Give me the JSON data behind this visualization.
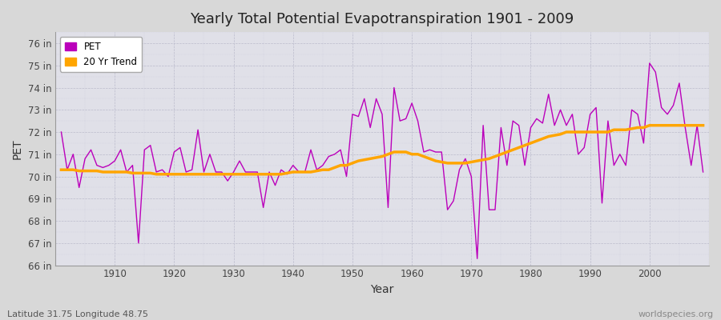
{
  "title": "Yearly Total Potential Evapotranspiration 1901 - 2009",
  "xlabel": "Year",
  "ylabel": "PET",
  "bottom_left_label": "Latitude 31.75 Longitude 48.75",
  "bottom_right_label": "worldspecies.org",
  "background_color": "#d8d8d8",
  "plot_bg_color": "#e0e0e8",
  "pet_color": "#bb00bb",
  "trend_color": "#ffa500",
  "ylim": [
    66,
    76.5
  ],
  "yticks": [
    66,
    67,
    68,
    69,
    70,
    71,
    72,
    73,
    74,
    75,
    76
  ],
  "ytick_labels": [
    "66 in",
    "67 in",
    "68 in",
    "69 in",
    "70 in",
    "71 in",
    "72 in",
    "73 in",
    "74 in",
    "75 in",
    "76 in"
  ],
  "xlim": [
    1900,
    2010
  ],
  "xticks": [
    1910,
    1920,
    1930,
    1940,
    1950,
    1960,
    1970,
    1980,
    1990,
    2000
  ],
  "pet_years": [
    1901,
    1902,
    1903,
    1904,
    1905,
    1906,
    1907,
    1908,
    1909,
    1910,
    1911,
    1912,
    1913,
    1914,
    1915,
    1916,
    1917,
    1918,
    1919,
    1920,
    1921,
    1922,
    1923,
    1924,
    1925,
    1926,
    1927,
    1928,
    1929,
    1930,
    1931,
    1932,
    1933,
    1934,
    1935,
    1936,
    1937,
    1938,
    1939,
    1940,
    1941,
    1942,
    1943,
    1944,
    1945,
    1946,
    1947,
    1948,
    1949,
    1950,
    1951,
    1952,
    1953,
    1954,
    1955,
    1956,
    1957,
    1958,
    1959,
    1960,
    1961,
    1962,
    1963,
    1964,
    1965,
    1966,
    1967,
    1968,
    1969,
    1970,
    1971,
    1972,
    1973,
    1974,
    1975,
    1976,
    1977,
    1978,
    1979,
    1980,
    1981,
    1982,
    1983,
    1984,
    1985,
    1986,
    1987,
    1988,
    1989,
    1990,
    1991,
    1992,
    1993,
    1994,
    1995,
    1996,
    1997,
    1998,
    1999,
    2000,
    2001,
    2002,
    2003,
    2004,
    2005,
    2006,
    2007,
    2008,
    2009
  ],
  "pet_values": [
    72.0,
    70.3,
    71.0,
    69.5,
    70.8,
    71.2,
    70.5,
    70.4,
    70.5,
    70.7,
    71.2,
    70.2,
    70.5,
    67.0,
    71.2,
    71.4,
    70.2,
    70.3,
    70.0,
    71.1,
    71.3,
    70.2,
    70.3,
    72.1,
    70.2,
    71.0,
    70.2,
    70.2,
    69.8,
    70.2,
    70.7,
    70.2,
    70.2,
    70.2,
    68.6,
    70.2,
    69.6,
    70.3,
    70.1,
    70.5,
    70.2,
    70.2,
    71.2,
    70.3,
    70.5,
    70.9,
    71.0,
    71.2,
    70.0,
    72.8,
    72.7,
    73.5,
    72.2,
    73.5,
    72.8,
    68.6,
    74.0,
    72.5,
    72.6,
    73.3,
    72.5,
    71.1,
    71.2,
    71.1,
    71.1,
    68.5,
    68.9,
    70.3,
    70.8,
    70.0,
    66.3,
    72.3,
    68.5,
    68.5,
    72.2,
    70.5,
    72.5,
    72.3,
    70.5,
    72.2,
    72.6,
    72.4,
    73.7,
    72.3,
    73.0,
    72.3,
    72.8,
    71.0,
    71.3,
    72.8,
    73.1,
    68.8,
    72.5,
    70.5,
    71.0,
    70.5,
    73.0,
    72.8,
    71.5,
    75.1,
    74.7,
    73.1,
    72.8,
    73.2,
    74.2,
    72.2,
    70.5,
    72.3,
    70.2
  ],
  "trend_years": [
    1901,
    1902,
    1903,
    1904,
    1905,
    1906,
    1907,
    1908,
    1909,
    1910,
    1911,
    1912,
    1913,
    1914,
    1915,
    1916,
    1917,
    1918,
    1919,
    1920,
    1921,
    1922,
    1923,
    1924,
    1925,
    1926,
    1927,
    1928,
    1929,
    1930,
    1931,
    1932,
    1933,
    1934,
    1935,
    1936,
    1937,
    1938,
    1939,
    1940,
    1941,
    1942,
    1943,
    1944,
    1945,
    1946,
    1947,
    1948,
    1949,
    1950,
    1951,
    1952,
    1953,
    1954,
    1955,
    1956,
    1957,
    1958,
    1959,
    1960,
    1961,
    1962,
    1963,
    1964,
    1965,
    1966,
    1967,
    1968,
    1969,
    1970,
    1971,
    1972,
    1973,
    1974,
    1975,
    1976,
    1977,
    1978,
    1979,
    1980,
    1981,
    1982,
    1983,
    1984,
    1985,
    1986,
    1987,
    1988,
    1989,
    1990,
    1991,
    1992,
    1993,
    1994,
    1995,
    1996,
    1997,
    1998,
    1999,
    2000,
    2001,
    2002,
    2003,
    2004,
    2005,
    2006,
    2007,
    2008,
    2009
  ],
  "trend_values": [
    70.3,
    70.3,
    70.3,
    70.25,
    70.25,
    70.25,
    70.25,
    70.2,
    70.2,
    70.2,
    70.2,
    70.2,
    70.15,
    70.15,
    70.15,
    70.15,
    70.1,
    70.1,
    70.1,
    70.1,
    70.1,
    70.1,
    70.1,
    70.1,
    70.1,
    70.1,
    70.1,
    70.1,
    70.1,
    70.1,
    70.1,
    70.1,
    70.1,
    70.1,
    70.1,
    70.1,
    70.1,
    70.1,
    70.15,
    70.2,
    70.2,
    70.2,
    70.2,
    70.25,
    70.3,
    70.3,
    70.4,
    70.5,
    70.5,
    70.6,
    70.7,
    70.75,
    70.8,
    70.85,
    70.9,
    71.0,
    71.1,
    71.1,
    71.1,
    71.0,
    71.0,
    70.9,
    70.8,
    70.7,
    70.65,
    70.6,
    70.6,
    70.6,
    70.6,
    70.65,
    70.7,
    70.75,
    70.8,
    70.9,
    71.0,
    71.1,
    71.2,
    71.3,
    71.4,
    71.5,
    71.6,
    71.7,
    71.8,
    71.85,
    71.9,
    72.0,
    72.0,
    72.0,
    72.0,
    72.0,
    72.0,
    72.0,
    72.0,
    72.1,
    72.1,
    72.1,
    72.15,
    72.2,
    72.2,
    72.3,
    72.3,
    72.3,
    72.3,
    72.3,
    72.3,
    72.3,
    72.3,
    72.3,
    72.3
  ]
}
